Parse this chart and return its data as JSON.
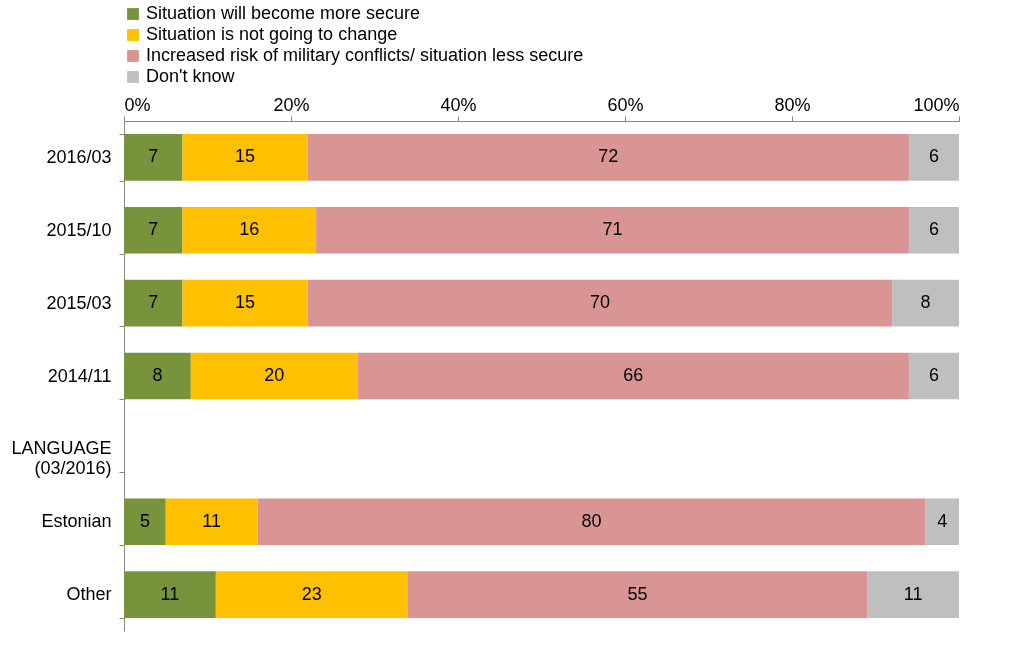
{
  "chart_data": {
    "type": "bar",
    "orientation": "horizontal",
    "stacked": true,
    "data_labels": true,
    "legend": "top",
    "grid": false,
    "categories": [
      "2016/03",
      "2015/10",
      "2015/03",
      "2014/11",
      "LANGUAGE (03/2016)",
      "Estonian",
      "Other"
    ],
    "xlim": [
      0,
      100
    ],
    "xticks": [
      {
        "value": 0,
        "label": "0%"
      },
      {
        "value": 20,
        "label": "20%"
      },
      {
        "value": 40,
        "label": "40%"
      },
      {
        "value": 60,
        "label": "60%"
      },
      {
        "value": 80,
        "label": "80%"
      },
      {
        "value": 100,
        "label": "100%"
      }
    ],
    "series": [
      {
        "name": "Situation will become more secure",
        "color": "#77933c",
        "values": [
          7,
          7,
          7,
          8,
          null,
          5,
          11
        ]
      },
      {
        "name": "Situation is not going to change",
        "color": "#ffc000",
        "values": [
          15,
          16,
          15,
          20,
          null,
          11,
          23
        ]
      },
      {
        "name": "Increased risk of military conflicts/ situation less secure",
        "color": "#d99594",
        "values": [
          72,
          71,
          70,
          66,
          null,
          80,
          55
        ]
      },
      {
        "name": "Don't know",
        "color": "#bfbfbf",
        "values": [
          6,
          6,
          8,
          6,
          null,
          4,
          11
        ]
      }
    ]
  }
}
